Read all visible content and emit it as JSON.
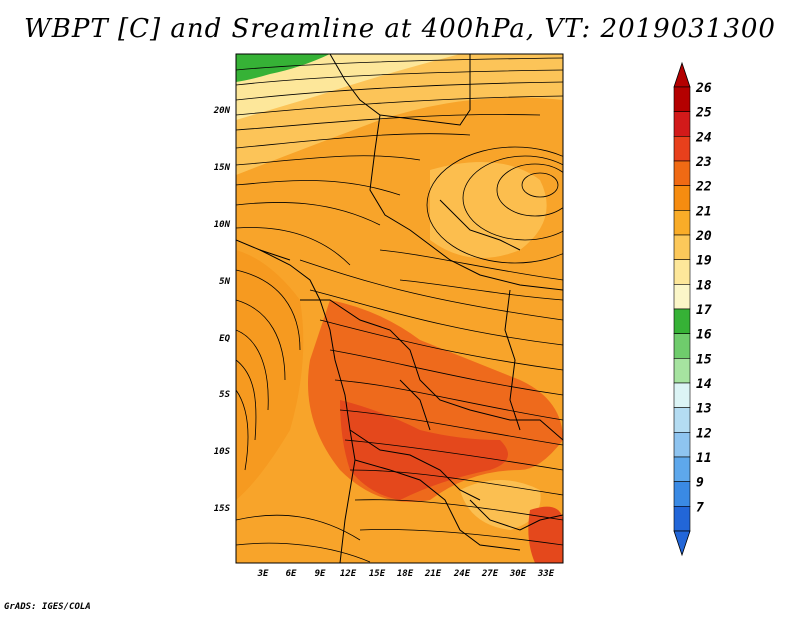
{
  "title": "WBPT [C] and Sreamline at 400hPa, VT: 2019031300",
  "credit": "GrADS: IGES/COLA",
  "map": {
    "lat_ticks": [
      "20N",
      "15N",
      "10N",
      "5N",
      "EQ",
      "5S",
      "10S",
      "15S"
    ],
    "lon_ticks": [
      "3E",
      "6E",
      "9E",
      "12E",
      "15E",
      "18E",
      "21E",
      "24E",
      "27E",
      "30E",
      "33E"
    ]
  },
  "colorbar": {
    "levels": [
      "26",
      "25",
      "24",
      "23",
      "22",
      "21",
      "20",
      "19",
      "18",
      "17",
      "16",
      "15",
      "14",
      "13",
      "12",
      "11",
      "9",
      "7"
    ],
    "colors": [
      "#b40000",
      "#d21a1a",
      "#e8401c",
      "#f06a14",
      "#f68c10",
      "#f9ac28",
      "#fcc85a",
      "#fde79a",
      "#fbf6c8",
      "#36b236",
      "#6fcc6c",
      "#a6e3a0",
      "#dcf4f5",
      "#b4dcf2",
      "#8ec4f0",
      "#5ea8ec",
      "#3a8ae4",
      "#2266d8"
    ]
  },
  "field_colors": {
    "deep_red": "#e4481c",
    "red_orange": "#ee6a1c",
    "orange": "#f5901a",
    "light_orange": "#f9ad2a",
    "pale_orange": "#fcc458",
    "yellow": "#fde79a",
    "green": "#36b236"
  }
}
